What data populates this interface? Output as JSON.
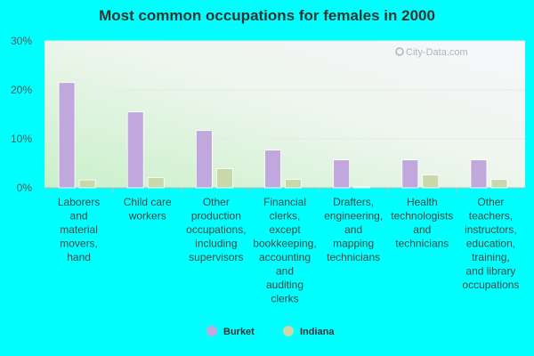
{
  "chart_data": {
    "type": "bar",
    "title": "Most common occupations for females in 2000",
    "categories": [
      [
        "Laborers",
        "and",
        "material",
        "movers,",
        "hand"
      ],
      [
        "Child care",
        "workers"
      ],
      [
        "Other",
        "production",
        "occupations,",
        "including",
        "supervisors"
      ],
      [
        "Financial",
        "clerks,",
        "except",
        "bookkeeping,",
        "accounting",
        "and",
        "auditing",
        "clerks"
      ],
      [
        "Drafters,",
        "engineering,",
        "and",
        "mapping",
        "technicians"
      ],
      [
        "Health",
        "technologists",
        "and",
        "technicians"
      ],
      [
        "Other",
        "teachers,",
        "instructors,",
        "education,",
        "training,",
        "and library",
        "occupations"
      ]
    ],
    "series": [
      {
        "name": "Burket",
        "color": "#c0a8dc",
        "values": [
          21.5,
          15.5,
          11.7,
          7.7,
          5.7,
          5.7,
          5.7
        ]
      },
      {
        "name": "Indiana",
        "color": "#c8d8a8",
        "values": [
          1.6,
          2.1,
          3.9,
          1.7,
          0.2,
          2.6,
          1.7
        ]
      }
    ],
    "y_ticks": [
      "0%",
      "10%",
      "20%",
      "30%"
    ],
    "ylim": [
      0,
      30
    ],
    "grid": true,
    "legend_position": "bottom-center",
    "watermark": "City-Data.com"
  }
}
